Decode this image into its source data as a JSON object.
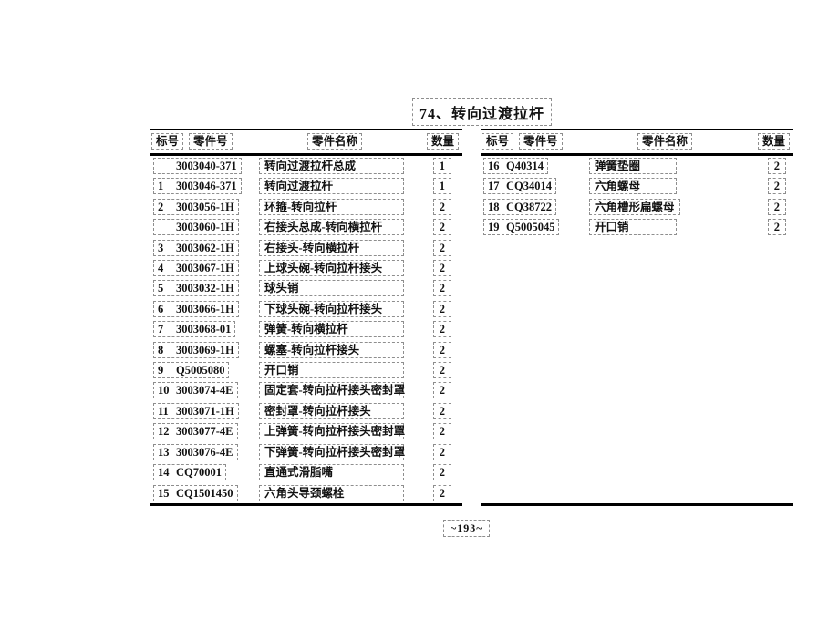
{
  "title": "74、转向过渡拉杆",
  "page_number": "~193~",
  "columns": {
    "label": "标号",
    "part_no": "零件号",
    "part_name": "零件名称",
    "qty": "数量"
  },
  "left_table": {
    "rows": [
      {
        "label": "",
        "part_no": "3003040-371",
        "name": "转向过渡拉杆总成",
        "qty": "1"
      },
      {
        "label": "1",
        "part_no": "3003046-371",
        "name": "转向过渡拉杆",
        "qty": "1"
      },
      {
        "label": "2",
        "part_no": "3003056-1H",
        "name": "环箍-转向拉杆",
        "qty": "2"
      },
      {
        "label": "",
        "part_no": "3003060-1H",
        "name": "右接头总成-转向横拉杆",
        "qty": "2"
      },
      {
        "label": "3",
        "part_no": "3003062-1H",
        "name": "右接头-转向横拉杆",
        "qty": "2"
      },
      {
        "label": "4",
        "part_no": "3003067-1H",
        "name": "上球头碗-转向拉杆接头",
        "qty": "2"
      },
      {
        "label": "5",
        "part_no": "3003032-1H",
        "name": "球头销",
        "qty": "2"
      },
      {
        "label": "6",
        "part_no": "3003066-1H",
        "name": "下球头碗-转向拉杆接头",
        "qty": "2"
      },
      {
        "label": "7",
        "part_no": "3003068-01",
        "name": "弹簧-转向横拉杆",
        "qty": "2"
      },
      {
        "label": "8",
        "part_no": "3003069-1H",
        "name": "螺塞-转向拉杆接头",
        "qty": "2"
      },
      {
        "label": "9",
        "part_no": "Q5005080",
        "name": "开口销",
        "qty": "2"
      },
      {
        "label": "10",
        "part_no": "3003074-4E",
        "name": "固定套-转向拉杆接头密封罩",
        "qty": "2"
      },
      {
        "label": "11",
        "part_no": "3003071-1H",
        "name": "密封罩-转向拉杆接头",
        "qty": "2"
      },
      {
        "label": "12",
        "part_no": "3003077-4E",
        "name": "上弹簧-转向拉杆接头密封罩",
        "qty": "2"
      },
      {
        "label": "13",
        "part_no": "3003076-4E",
        "name": "下弹簧-转向拉杆接头密封罩",
        "qty": "2"
      },
      {
        "label": "14",
        "part_no": "CQ70001",
        "name": "直通式滑脂嘴",
        "qty": "2"
      },
      {
        "label": "15",
        "part_no": "CQ1501450",
        "name": "六角头导颈螺栓",
        "qty": "2"
      }
    ]
  },
  "right_table": {
    "rows": [
      {
        "label": "16",
        "part_no": "Q40314",
        "name": "弹簧垫圈",
        "qty": "2"
      },
      {
        "label": "17",
        "part_no": "CQ34014",
        "name": "六角螺母",
        "qty": "2"
      },
      {
        "label": "18",
        "part_no": "CQ38722",
        "name": "六角槽形扁螺母",
        "qty": "2"
      },
      {
        "label": "19",
        "part_no": "Q5005045",
        "name": "开口销",
        "qty": "2"
      }
    ]
  },
  "colors": {
    "background": "#ffffff",
    "text": "#121212",
    "rule_line": "#000000",
    "dash_border": "#8e8e8e"
  }
}
